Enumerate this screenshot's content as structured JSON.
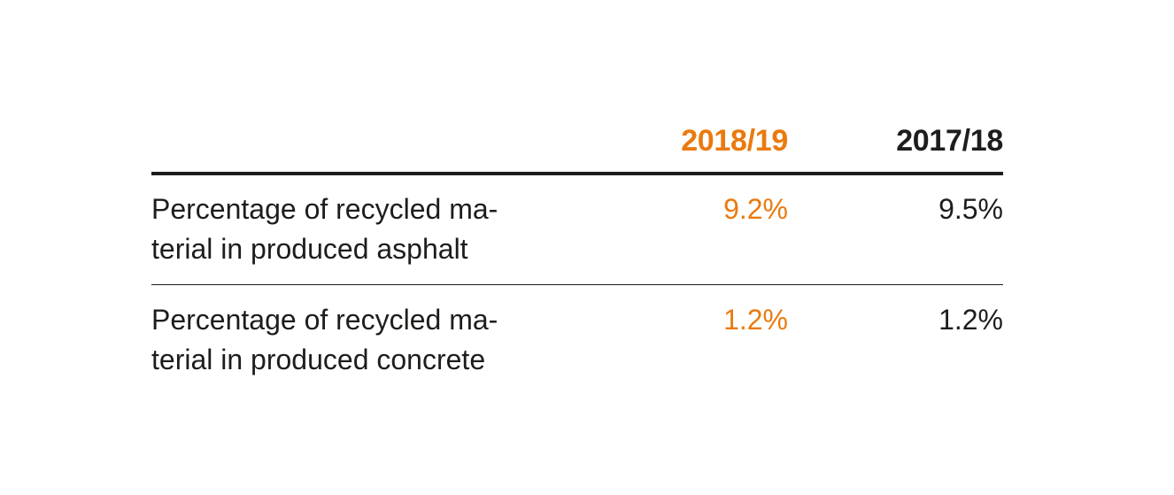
{
  "table": {
    "columns": [
      {
        "label": "2018/19",
        "color": "#ea7a0e"
      },
      {
        "label": "2017/18",
        "color": "#1d1d1b"
      }
    ],
    "rows": [
      {
        "label": "Percentage of recycled ma-\nterial in produced asphalt",
        "values": [
          "9.2%",
          "9.5%"
        ]
      },
      {
        "label": "Percentage of recycled ma-\nterial in produced concrete",
        "values": [
          "1.2%",
          "1.2%"
        ]
      }
    ]
  }
}
